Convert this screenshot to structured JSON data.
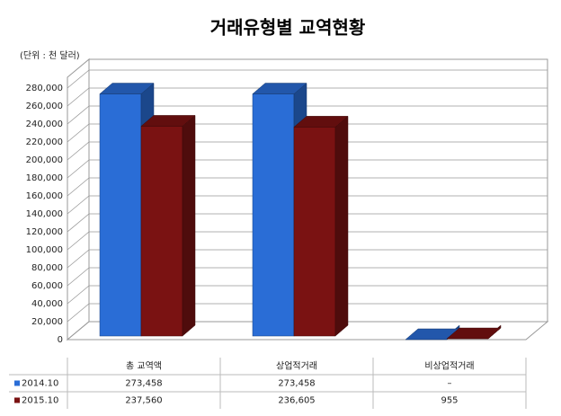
{
  "chart_data": {
    "type": "bar3d",
    "title": "거래유형별 교역현황",
    "unit_note": "(단위 : 천 달러)",
    "categories": [
      "총 교역액",
      "상업적거래",
      "비상업적거래"
    ],
    "series": [
      {
        "name": "2014.10",
        "color": "#2a6dd6",
        "values": [
          273458,
          273458,
          null
        ],
        "value_labels": [
          "273,458",
          "273,458",
          "–"
        ]
      },
      {
        "name": "2015.10",
        "color": "#7a1212",
        "values": [
          237560,
          236605,
          955
        ],
        "value_labels": [
          "237,560",
          "236,605",
          "955"
        ]
      }
    ],
    "ylim": [
      0,
      280000
    ],
    "yticks": [
      0,
      {
        "value": 20000,
        "label": "20,000"
      },
      {
        "value": 40000,
        "label": "40,000"
      },
      {
        "value": 60000,
        "label": "60,000"
      },
      {
        "value": 80000,
        "label": "80,000"
      },
      {
        "value": 100000,
        "label": "100,000"
      },
      {
        "value": 120000,
        "label": "120,000"
      },
      {
        "value": 140000,
        "label": "140,000"
      },
      {
        "value": 160000,
        "label": "160,000"
      },
      {
        "value": 180000,
        "label": "180,000"
      },
      {
        "value": 200000,
        "label": "200,000"
      },
      {
        "value": 220000,
        "label": "220,000"
      },
      {
        "value": 240000,
        "label": "240,000"
      },
      {
        "value": 260000,
        "label": "260,000"
      },
      {
        "value": 280000,
        "label": "280,000"
      }
    ],
    "grid": true
  }
}
